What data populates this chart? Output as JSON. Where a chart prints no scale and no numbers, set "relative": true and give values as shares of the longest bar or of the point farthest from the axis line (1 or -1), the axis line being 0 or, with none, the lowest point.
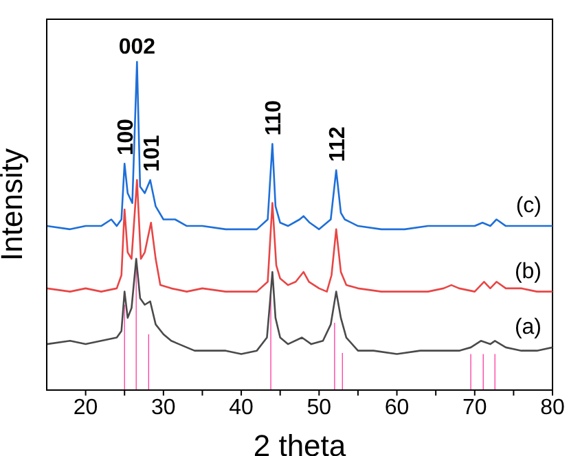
{
  "chart_data": {
    "type": "line",
    "relative": true,
    "xlabel": "2 theta",
    "ylabel": "Intensity",
    "xlim": [
      15,
      80
    ],
    "xticks": [
      20,
      {
        "value": 25,
        "label": null
      },
      30,
      {
        "value": 35,
        "label": null
      },
      40,
      {
        "value": 45,
        "label": null
      },
      50,
      {
        "value": 55,
        "label": null
      },
      60,
      {
        "value": 65,
        "label": null
      },
      70,
      {
        "value": 75,
        "label": null
      },
      80
    ],
    "marker": "none",
    "line_style": "solid",
    "annotations": [
      {
        "text": "100",
        "x": 25.0,
        "y": 0.69
      },
      {
        "text": "002",
        "x": 26.6,
        "y": 1.0
      },
      {
        "text": "101",
        "x": 28.3,
        "y": 0.64
      },
      {
        "text": "110",
        "x": 44.0,
        "y": 0.75
      },
      {
        "text": "112",
        "x": 52.2,
        "y": 0.67
      }
    ],
    "series": [
      {
        "name": "(a)",
        "color": "#4a4a4a",
        "x": [
          15,
          18,
          20,
          22,
          24,
          24.6,
          25.0,
          25.4,
          25.9,
          26.5,
          27.0,
          27.6,
          28.3,
          29,
          30,
          31,
          32,
          34,
          36,
          38,
          40,
          42,
          43.3,
          43.7,
          44.0,
          44.4,
          45,
          46,
          47.8,
          49,
          50.5,
          51.5,
          52.2,
          52.8,
          53.5,
          55,
          57,
          60,
          63,
          66,
          68,
          69.5,
          70.8,
          72,
          72.6,
          74,
          76,
          78,
          80
        ],
        "values": [
          0.14,
          0.15,
          0.14,
          0.15,
          0.16,
          0.18,
          0.3,
          0.22,
          0.25,
          0.4,
          0.28,
          0.26,
          0.27,
          0.2,
          0.17,
          0.15,
          0.14,
          0.12,
          0.12,
          0.12,
          0.11,
          0.12,
          0.16,
          0.27,
          0.36,
          0.22,
          0.16,
          0.14,
          0.16,
          0.14,
          0.15,
          0.2,
          0.3,
          0.22,
          0.16,
          0.12,
          0.12,
          0.11,
          0.12,
          0.12,
          0.12,
          0.13,
          0.15,
          0.14,
          0.15,
          0.13,
          0.12,
          0.12,
          0.13
        ]
      },
      {
        "name": "(b)",
        "color": "#e84545",
        "x": [
          15,
          18,
          20,
          22,
          24,
          24.6,
          25.0,
          25.4,
          25.9,
          26.6,
          27.1,
          27.6,
          28.4,
          29,
          29.6,
          31,
          33,
          35,
          38,
          40,
          42,
          43.4,
          44.0,
          44.5,
          45,
          46,
          47,
          48,
          48.7,
          50,
          51,
          51.6,
          52.2,
          52.8,
          53.5,
          55,
          58,
          61,
          64,
          66,
          67,
          68,
          70,
          71.2,
          72,
          72.8,
          74,
          76,
          78,
          80
        ],
        "values": [
          0.31,
          0.3,
          0.31,
          0.3,
          0.31,
          0.35,
          0.55,
          0.42,
          0.4,
          0.64,
          0.4,
          0.42,
          0.51,
          0.4,
          0.32,
          0.31,
          0.3,
          0.31,
          0.3,
          0.3,
          0.3,
          0.33,
          0.57,
          0.38,
          0.34,
          0.32,
          0.33,
          0.36,
          0.33,
          0.31,
          0.3,
          0.35,
          0.49,
          0.36,
          0.32,
          0.31,
          0.3,
          0.3,
          0.3,
          0.31,
          0.32,
          0.31,
          0.3,
          0.33,
          0.31,
          0.33,
          0.31,
          0.31,
          0.3,
          0.3
        ]
      },
      {
        "name": "(c)",
        "color": "#1e6fd9",
        "x": [
          15,
          18,
          20,
          22,
          23.3,
          24,
          24.6,
          25.0,
          25.4,
          26.0,
          26.6,
          27.0,
          27.6,
          28.3,
          29,
          30,
          31.5,
          33,
          35,
          38,
          40,
          42,
          43.4,
          44.0,
          44.4,
          45,
          46,
          47.5,
          48,
          48.8,
          50,
          51.5,
          52.2,
          52.8,
          53.3,
          55,
          58,
          61,
          64,
          67,
          70,
          71,
          72,
          72.8,
          74,
          77,
          80
        ],
        "values": [
          0.5,
          0.49,
          0.5,
          0.5,
          0.52,
          0.5,
          0.52,
          0.69,
          0.6,
          0.57,
          1.0,
          0.62,
          0.6,
          0.64,
          0.56,
          0.52,
          0.52,
          0.5,
          0.5,
          0.49,
          0.49,
          0.49,
          0.52,
          0.75,
          0.56,
          0.51,
          0.5,
          0.52,
          0.53,
          0.51,
          0.49,
          0.52,
          0.67,
          0.54,
          0.52,
          0.5,
          0.49,
          0.49,
          0.5,
          0.5,
          0.5,
          0.51,
          0.5,
          0.52,
          0.5,
          0.5,
          0.5
        ]
      },
      {
        "type": "bar",
        "color": "#ff0080",
        "x": [
          25.0,
          26.5,
          28.1,
          43.8,
          52.0,
          53.0,
          69.5,
          71.1,
          72.6
        ],
        "values": [
          0.26,
          0.38,
          0.17,
          0.29,
          0.205,
          0.113,
          0.11,
          0.11,
          0.11
        ]
      }
    ]
  }
}
